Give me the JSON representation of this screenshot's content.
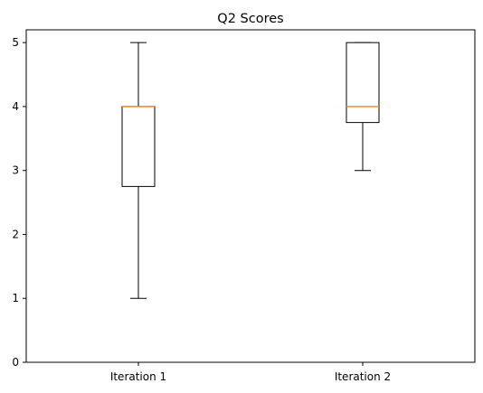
{
  "chart_data": {
    "type": "box",
    "title": "Q2 Scores",
    "xlabel": "",
    "ylabel": "",
    "categories": [
      "Iteration 1",
      "Iteration 2"
    ],
    "boxes": [
      {
        "category": "Iteration 1",
        "whislo": 1,
        "q1": 2.75,
        "med": 4,
        "q3": 4,
        "whishi": 5
      },
      {
        "category": "Iteration 2",
        "whislo": 3,
        "q1": 3.75,
        "med": 4,
        "q3": 5,
        "whishi": 5
      }
    ],
    "ylim": [
      0,
      5.2
    ],
    "yticks": [
      0,
      1,
      2,
      3,
      4,
      5
    ],
    "grid": false,
    "colors": {
      "box": "#000000",
      "median": "#ff7f0e",
      "whisker": "#000000"
    }
  }
}
